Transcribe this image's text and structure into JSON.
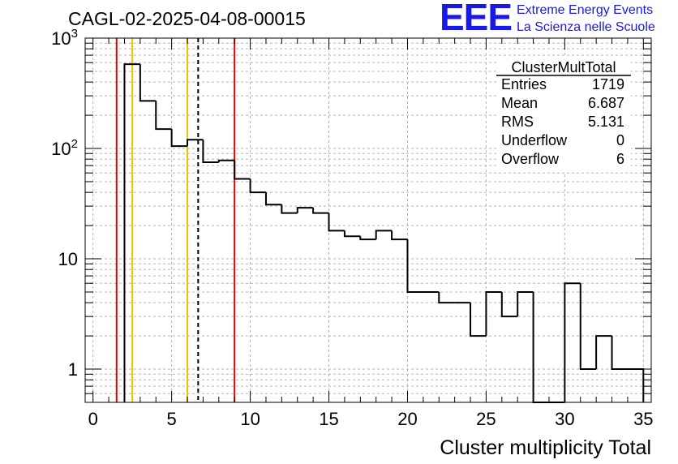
{
  "header": {
    "title": "CAGL-02-2025-04-08-00015",
    "logo": {
      "mark": "EEE",
      "line1": "Extreme Energy Events",
      "line2": "La Scienza nelle Scuole",
      "color": "#1818e8"
    }
  },
  "chart_data": {
    "type": "bar",
    "title": "CAGL-02-2025-04-08-00015",
    "xlabel": "Cluster multiplicity Total",
    "ylabel": "",
    "yscale": "log",
    "xlim": [
      -0.5,
      35.5
    ],
    "ylim": [
      0.5,
      1000
    ],
    "grid": true,
    "bin_width": 1,
    "x": [
      2.5,
      3.5,
      4.5,
      5.5,
      6.5,
      7.5,
      8.5,
      9.5,
      10.5,
      11.5,
      12.5,
      13.5,
      14.5,
      15.5,
      16.5,
      17.5,
      18.5,
      19.5,
      20.5,
      21.5,
      22.5,
      23.5,
      24.5,
      25.5,
      26.5,
      27.5,
      28.5,
      29.5,
      30.5,
      31.5,
      32.5,
      33.5,
      34.5
    ],
    "values": [
      580,
      270,
      150,
      105,
      120,
      75,
      78,
      53,
      40,
      31,
      26,
      29,
      26,
      18,
      16,
      15,
      18,
      15,
      5,
      5,
      4,
      4,
      2,
      5,
      3,
      5,
      0,
      0,
      6,
      1,
      2,
      1,
      1
    ],
    "xticks": [
      0,
      5,
      10,
      15,
      20,
      25,
      30,
      35
    ],
    "yticks": [
      {
        "value": 1,
        "label": "1"
      },
      {
        "value": 10,
        "label": "10"
      },
      {
        "value": 100,
        "label": "10",
        "sup": "2"
      },
      {
        "value": 1000,
        "label": "10",
        "sup": "3"
      }
    ],
    "vertical_lines": [
      {
        "x": 1.5,
        "color": "#e00000",
        "style": "solid"
      },
      {
        "x": 2.5,
        "color": "#f0c000",
        "style": "solid"
      },
      {
        "x": 6.0,
        "color": "#f0c000",
        "style": "solid"
      },
      {
        "x": 6.687,
        "color": "#000000",
        "style": "dashed"
      },
      {
        "x": 9.0,
        "color": "#e00000",
        "style": "solid"
      }
    ],
    "stats_box": {
      "title": "ClusterMultTotal",
      "rows": [
        {
          "label": "Entries",
          "value": "1719"
        },
        {
          "label": "Mean",
          "value": "6.687"
        },
        {
          "label": "RMS",
          "value": "5.131"
        },
        {
          "label": "Underflow",
          "value": "0"
        },
        {
          "label": "Overflow",
          "value": "6"
        }
      ]
    }
  }
}
